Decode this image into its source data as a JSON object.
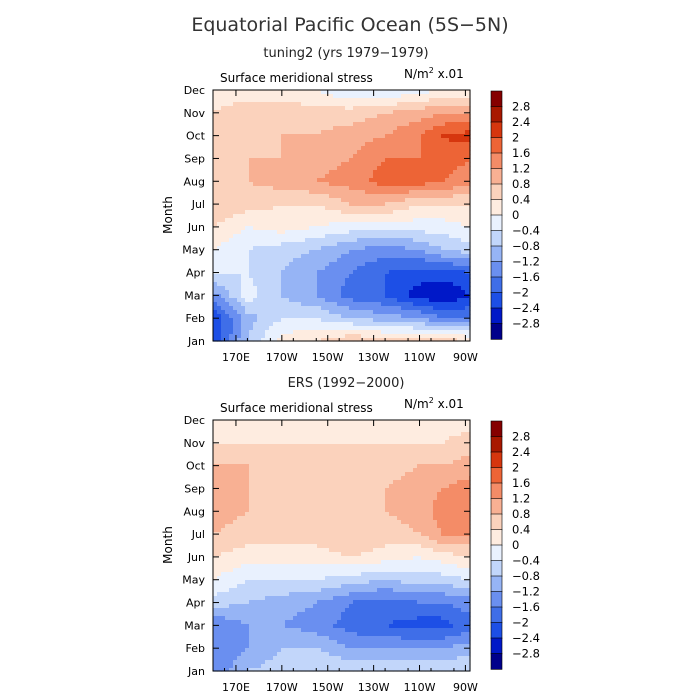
{
  "figure": {
    "title": "Equatorial Pacific Ocean (5S−5N)"
  },
  "chart_data": [
    {
      "type": "heatmap",
      "title": "tuning2 (yrs 1979−1979)",
      "subtitle": "Surface meridional stress",
      "units_label": "N/m",
      "units_sup": "2",
      "units_suffix": " x.01",
      "ylabel": "Month",
      "x_ticks": [
        "170E",
        "170W",
        "150W",
        "130W",
        "110W",
        "90W"
      ],
      "x_tick_lon": [
        170,
        190,
        210,
        230,
        250,
        270
      ],
      "xlim_lon": [
        160,
        272
      ],
      "y_ticks": [
        "Jan",
        "Feb",
        "Mar",
        "Apr",
        "May",
        "Jun",
        "Jul",
        "Aug",
        "Sep",
        "Oct",
        "Nov",
        "Dec"
      ],
      "colorbar_levels": [
        "2.8",
        "2.4",
        "2",
        "1.6",
        "1.2",
        "0.8",
        "0.4",
        "0",
        "−0.4",
        "−0.8",
        "−1.2",
        "−1.6",
        "−2",
        "−2.4",
        "−2.8"
      ],
      "columns_lon": [
        160,
        175,
        190,
        205,
        220,
        235,
        250,
        260,
        272
      ],
      "values": [
        [
          -2.4,
          -0.8,
          0.2,
          0.4,
          0.8,
          0.6,
          0.6,
          0.6,
          0.4
        ],
        [
          -2.4,
          -1.0,
          -0.4,
          -0.4,
          -0.8,
          -1.0,
          -1.2,
          -1.6,
          -1.6
        ],
        [
          -1.4,
          -0.2,
          -0.8,
          -1.2,
          -1.8,
          -2.0,
          -2.6,
          -2.8,
          -2.4
        ],
        [
          -0.4,
          -0.4,
          -0.8,
          -1.2,
          -1.6,
          -2.0,
          -2.2,
          -2.2,
          -2.0
        ],
        [
          0.0,
          -0.4,
          -0.6,
          -0.8,
          -1.2,
          -1.4,
          -1.2,
          -0.8,
          -0.6
        ],
        [
          0.4,
          0.0,
          0.2,
          0.0,
          -0.2,
          -0.2,
          -0.2,
          -0.2,
          0.0
        ],
        [
          0.8,
          0.6,
          0.4,
          0.4,
          0.8,
          0.8,
          0.4,
          0.4,
          0.4
        ],
        [
          0.8,
          0.8,
          1.0,
          1.2,
          1.4,
          1.8,
          1.8,
          1.6,
          1.4
        ],
        [
          0.8,
          0.8,
          0.8,
          1.0,
          1.2,
          1.6,
          1.6,
          1.8,
          1.6
        ],
        [
          0.6,
          0.8,
          0.8,
          0.8,
          1.0,
          1.2,
          1.6,
          2.0,
          2.2
        ],
        [
          0.4,
          0.6,
          0.6,
          0.6,
          0.6,
          0.8,
          1.0,
          1.2,
          1.2
        ],
        [
          0.2,
          0.2,
          0.2,
          0.0,
          -0.4,
          -0.4,
          -0.2,
          0.0,
          0.0
        ]
      ]
    },
    {
      "type": "heatmap",
      "title": "ERS (1992−2000)",
      "subtitle": "Surface meridional stress",
      "units_label": "N/m",
      "units_sup": "2",
      "units_suffix": " x.01",
      "ylabel": "Month",
      "x_ticks": [
        "170E",
        "170W",
        "150W",
        "130W",
        "110W",
        "90W"
      ],
      "x_tick_lon": [
        170,
        190,
        210,
        230,
        250,
        270
      ],
      "xlim_lon": [
        160,
        272
      ],
      "y_ticks": [
        "Jan",
        "Feb",
        "Mar",
        "Apr",
        "May",
        "Jun",
        "Jul",
        "Aug",
        "Sep",
        "Oct",
        "Nov",
        "Dec"
      ],
      "colorbar_levels": [
        "2.8",
        "2.4",
        "2",
        "1.6",
        "1.2",
        "0.8",
        "0.4",
        "0",
        "−0.4",
        "−0.8",
        "−1.2",
        "−1.6",
        "−2",
        "−2.4",
        "−2.8"
      ],
      "columns_lon": [
        160,
        175,
        190,
        205,
        220,
        235,
        250,
        260,
        272
      ],
      "values": [
        [
          -1.6,
          -0.8,
          -0.6,
          -0.4,
          -0.4,
          -0.4,
          -0.4,
          -0.4,
          -0.4
        ],
        [
          -1.6,
          -1.2,
          -0.8,
          -0.8,
          -1.2,
          -1.2,
          -1.2,
          -1.2,
          -1.0
        ],
        [
          -1.6,
          -1.2,
          -1.2,
          -1.4,
          -1.8,
          -2.0,
          -2.2,
          -2.2,
          -1.8
        ],
        [
          -0.6,
          -0.8,
          -1.0,
          -1.2,
          -1.6,
          -1.8,
          -1.6,
          -1.6,
          -1.4
        ],
        [
          0.0,
          -0.4,
          -0.4,
          -0.4,
          -0.6,
          -0.8,
          -0.6,
          -0.6,
          -0.4
        ],
        [
          0.4,
          0.2,
          0.2,
          0.2,
          0.4,
          0.2,
          0.0,
          0.2,
          0.4
        ],
        [
          0.8,
          0.6,
          0.6,
          0.6,
          0.8,
          0.6,
          0.8,
          1.2,
          1.2
        ],
        [
          1.0,
          0.8,
          0.8,
          0.8,
          0.8,
          0.8,
          1.0,
          1.4,
          1.4
        ],
        [
          1.2,
          0.8,
          0.8,
          0.8,
          0.8,
          0.8,
          1.0,
          1.2,
          1.4
        ],
        [
          0.8,
          0.8,
          0.8,
          0.8,
          0.6,
          0.6,
          0.8,
          0.8,
          1.0
        ],
        [
          0.4,
          0.4,
          0.4,
          0.4,
          0.4,
          0.4,
          0.4,
          0.4,
          0.6
        ],
        [
          0.0,
          0.0,
          0.0,
          0.0,
          0.2,
          0.2,
          0.2,
          0.2,
          0.2
        ]
      ]
    }
  ],
  "colors": {
    "scale": [
      "#00008b",
      "#0018c8",
      "#1d4fe6",
      "#3f6ee8",
      "#6a8ff0",
      "#96b4f5",
      "#c2d6fa",
      "#e9f1fe",
      "#feece0",
      "#fbd2bc",
      "#f8b093",
      "#f48c67",
      "#ed6436",
      "#d6360e",
      "#a81800",
      "#850000"
    ],
    "frame": "#000000"
  }
}
